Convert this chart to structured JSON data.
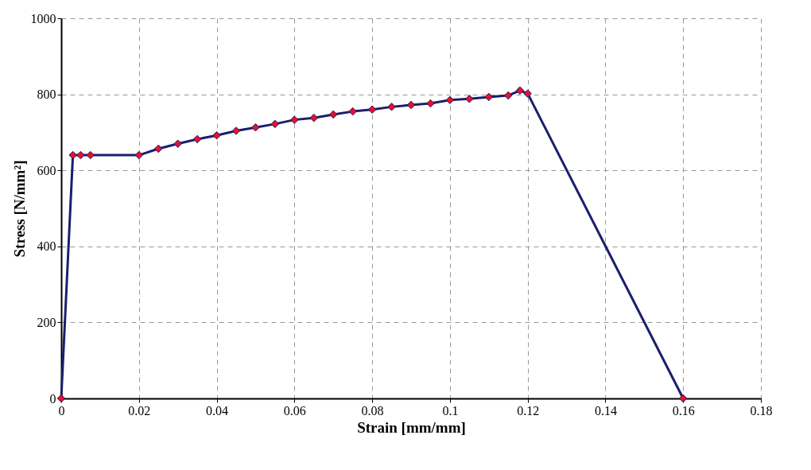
{
  "chart_data": {
    "type": "line",
    "xlabel": "Strain [mm/mm]",
    "ylabel": "Stress [N/mm²]",
    "xlim": [
      0,
      0.18
    ],
    "xticks": [
      0,
      0.02,
      0.04,
      0.06,
      0.08,
      0.1,
      0.12,
      0.14,
      0.16,
      0.18
    ],
    "ylim": [
      0,
      1000
    ],
    "yticks": [
      0,
      200,
      400,
      600,
      800,
      1000
    ],
    "grid": true,
    "marker": "diamond",
    "line_style": "solid",
    "series": [
      {
        "color": "#1a1f6e",
        "colors": [
          "#e8102a",
          "#e8102a",
          "#e8102a",
          "#e8102a",
          "#e8102a",
          "#e8102a",
          "#e8102a",
          "#e8102a",
          "#e8102a",
          "#e8102a",
          "#e8102a",
          "#e8102a",
          "#e8102a",
          "#e8102a",
          "#e8102a",
          "#e8102a",
          "#e8102a",
          "#e8102a",
          "#e8102a",
          "#e8102a",
          "#e8102a",
          "#e8102a",
          "#e8102a",
          "#e8102a",
          "#e8102a",
          "#e8102a",
          "#e8102a"
        ],
        "x": [
          0,
          0.003,
          0.005,
          0.0075,
          0.02,
          0.025,
          0.03,
          0.035,
          0.04,
          0.045,
          0.05,
          0.055,
          0.06,
          0.065,
          0.07,
          0.075,
          0.08,
          0.085,
          0.09,
          0.095,
          0.1,
          0.105,
          0.11,
          0.115,
          0.118,
          0.12,
          0.16
        ],
        "values": [
          0,
          640,
          640,
          640,
          640,
          657,
          670,
          682,
          692,
          704,
          713,
          722,
          733,
          738,
          747,
          755,
          760,
          767,
          772,
          776,
          785,
          788,
          793,
          797,
          810,
          802,
          0
        ]
      }
    ]
  }
}
